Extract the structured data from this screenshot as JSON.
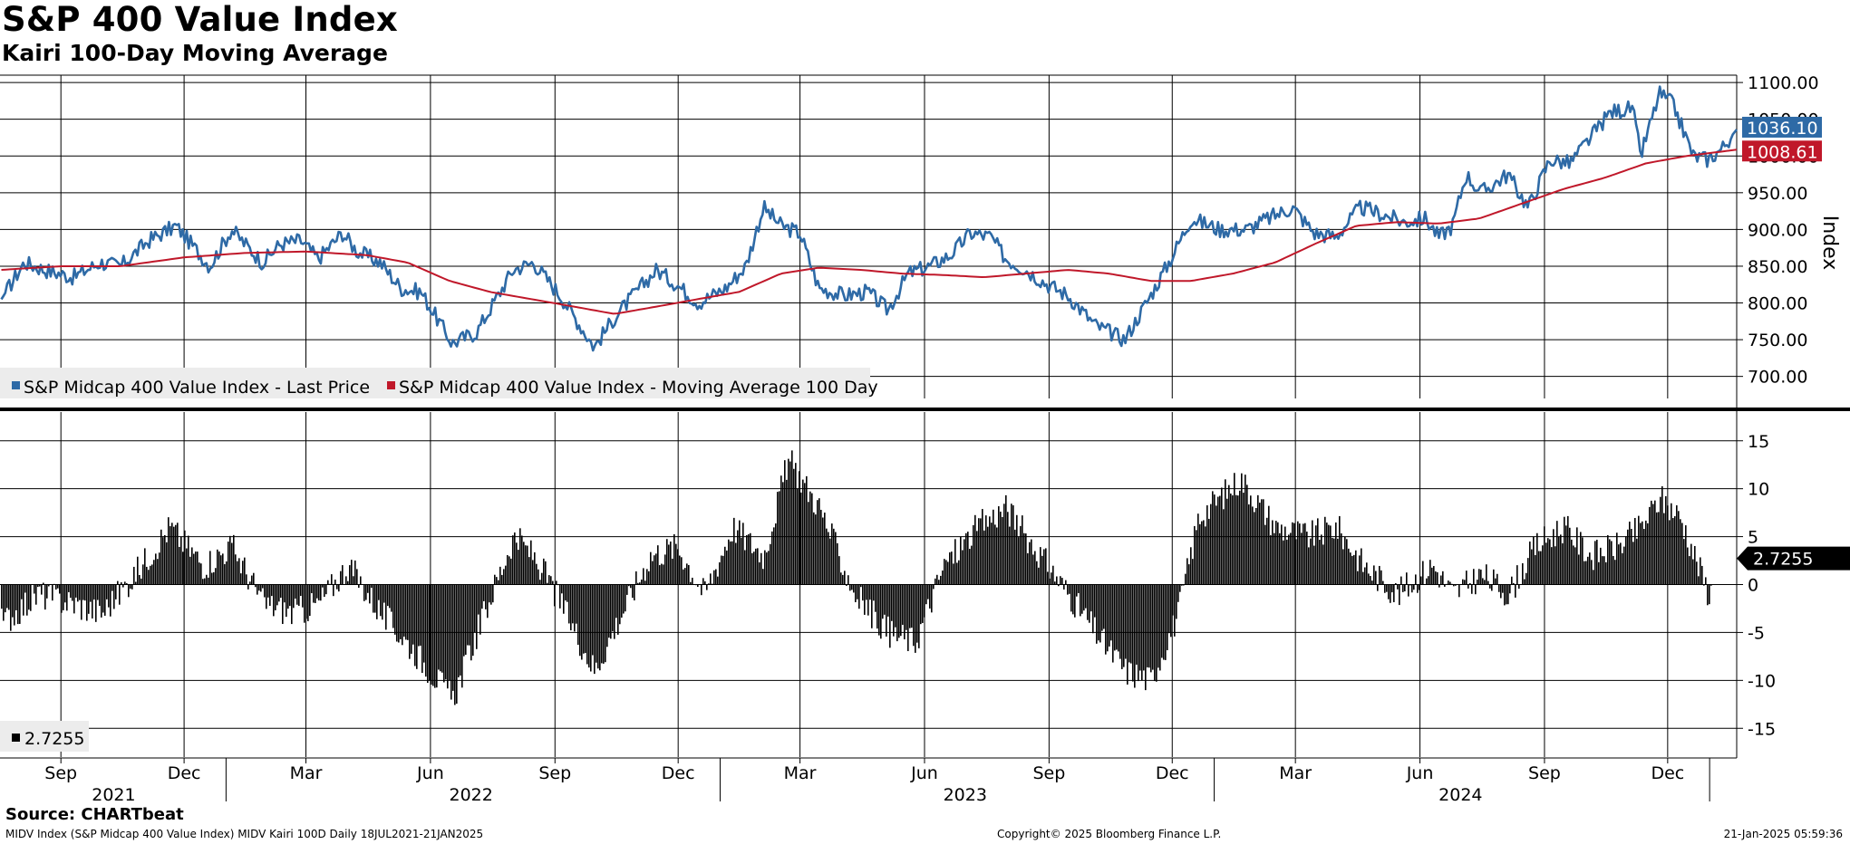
{
  "header": {
    "title": "S&P 400 Value Index",
    "subtitle": "Kairi 100-Day Moving Average"
  },
  "footer": {
    "source": "Source: CHARTbeat",
    "left": "MIDV Index (S&P Midcap 400 Value Index) MIDV Kairi 100D  Daily 18JUL2021-21JAN2025",
    "middle": "Copyright© 2025 Bloomberg Finance L.P.",
    "right": "21-Jan-2025 05:59:36"
  },
  "colors": {
    "price": "#2e6aa6",
    "ma": "#c0182a",
    "kairi": "#000000",
    "grid": "#000000"
  },
  "chart_data": [
    {
      "type": "line",
      "title": "S&P 400 Value Index",
      "ylabel": "Index",
      "ylim": [
        670,
        1110
      ],
      "yticks": [
        700,
        750,
        800,
        850,
        900,
        950,
        1000,
        1050,
        1100
      ],
      "ytick_labels": [
        "700.00",
        "750.00",
        "800.00",
        "850.00",
        "900.00",
        "950.00",
        "1000.00",
        "1050.00",
        "1100.00"
      ],
      "x_start": "2021-07-18",
      "x_end": "2025-01-21",
      "legend": [
        "S&P Midcap 400 Value Index - Last Price",
        "S&P Midcap 400 Value Index - Moving Average 100 Day"
      ],
      "last_labels": [
        {
          "series": "price",
          "text": "1036.10",
          "value": 1036.1
        },
        {
          "series": "ma",
          "text": "1008.61",
          "value": 1008.61
        }
      ],
      "series": [
        {
          "name": "S&P Midcap 400 Value Index - Last Price",
          "key": "price",
          "x": [
            "2021-07-19",
            "2021-08-05",
            "2021-08-20",
            "2021-09-10",
            "2021-09-30",
            "2021-10-15",
            "2021-11-05",
            "2021-11-25",
            "2021-12-20",
            "2022-01-05",
            "2022-01-28",
            "2022-02-10",
            "2022-02-25",
            "2022-03-10",
            "2022-03-28",
            "2022-04-08",
            "2022-04-25",
            "2022-05-10",
            "2022-05-25",
            "2022-06-17",
            "2022-07-05",
            "2022-08-01",
            "2022-08-16",
            "2022-09-05",
            "2022-09-30",
            "2022-10-15",
            "2022-10-31",
            "2022-11-15",
            "2022-11-30",
            "2022-12-16",
            "2023-01-05",
            "2023-01-20",
            "2023-02-02",
            "2023-02-15",
            "2023-03-01",
            "2023-03-15",
            "2023-04-03",
            "2023-04-20",
            "2023-05-05",
            "2023-05-20",
            "2023-06-05",
            "2023-06-20",
            "2023-07-05",
            "2023-07-20",
            "2023-07-31",
            "2023-08-15",
            "2023-08-31",
            "2023-09-15",
            "2023-10-05",
            "2023-10-27",
            "2023-11-15",
            "2023-11-30",
            "2023-12-15",
            "2024-01-05",
            "2024-01-25",
            "2024-02-10",
            "2024-02-28",
            "2024-03-15",
            "2024-03-31",
            "2024-04-18",
            "2024-05-05",
            "2024-05-20",
            "2024-06-05",
            "2024-06-15",
            "2024-06-25",
            "2024-07-05",
            "2024-07-16",
            "2024-08-05",
            "2024-08-20",
            "2024-09-05",
            "2024-09-20",
            "2024-10-05",
            "2024-10-20",
            "2024-11-05",
            "2024-11-11",
            "2024-11-25",
            "2024-12-05",
            "2024-12-20",
            "2024-12-31",
            "2025-01-10",
            "2025-01-21"
          ],
          "values": [
            805,
            855,
            845,
            835,
            855,
            850,
            885,
            905,
            850,
            900,
            855,
            880,
            885,
            860,
            895,
            870,
            855,
            820,
            815,
            745,
            760,
            845,
            855,
            810,
            740,
            780,
            815,
            845,
            825,
            800,
            820,
            850,
            930,
            905,
            895,
            820,
            810,
            815,
            790,
            840,
            850,
            865,
            895,
            890,
            860,
            845,
            825,
            810,
            770,
            750,
            810,
            860,
            915,
            900,
            900,
            915,
            930,
            895,
            890,
            930,
            920,
            910,
            915,
            890,
            905,
            975,
            950,
            975,
            930,
            995,
            990,
            1025,
            1060,
            1065,
            1000,
            1085,
            1070,
            1000,
            995,
            1010,
            1036.1
          ]
        },
        {
          "name": "S&P Midcap 400 Value Index - Moving Average 100 Day",
          "key": "ma",
          "x": [
            "2021-07-19",
            "2021-09-01",
            "2021-10-15",
            "2021-12-01",
            "2022-01-15",
            "2022-03-01",
            "2022-04-15",
            "2022-05-15",
            "2022-06-15",
            "2022-07-15",
            "2022-08-15",
            "2022-09-15",
            "2022-10-15",
            "2022-11-15",
            "2022-12-15",
            "2023-01-15",
            "2023-02-15",
            "2023-03-15",
            "2023-04-15",
            "2023-05-15",
            "2023-06-15",
            "2023-07-15",
            "2023-08-15",
            "2023-09-15",
            "2023-10-15",
            "2023-11-15",
            "2023-12-15",
            "2024-01-15",
            "2024-02-15",
            "2024-03-15",
            "2024-04-15",
            "2024-05-15",
            "2024-06-15",
            "2024-07-15",
            "2024-08-15",
            "2024-09-15",
            "2024-10-15",
            "2024-11-15",
            "2024-12-15",
            "2025-01-21"
          ],
          "values": [
            845,
            850,
            850,
            862,
            868,
            870,
            865,
            855,
            830,
            815,
            805,
            795,
            785,
            795,
            805,
            815,
            840,
            848,
            845,
            840,
            838,
            835,
            840,
            845,
            840,
            830,
            830,
            840,
            855,
            880,
            905,
            910,
            908,
            915,
            935,
            955,
            970,
            990,
            1000,
            1008.61
          ]
        }
      ]
    },
    {
      "type": "bar",
      "title": "MIDV Kairi 100D",
      "ylim": [
        -18,
        18
      ],
      "yticks": [
        -15,
        -10,
        -5,
        0,
        5,
        10,
        15
      ],
      "ytick_labels": [
        "-15",
        "-10",
        "-5",
        "0",
        "5",
        "10",
        "15"
      ],
      "legend": [
        "2.7255"
      ],
      "last_label": {
        "text": "2.7255",
        "value": 2.7255
      },
      "x_anchor": [
        "2021-07-19",
        "2021-08-15",
        "2021-09-10",
        "2021-10-01",
        "2021-10-25",
        "2021-11-20",
        "2021-12-15",
        "2022-01-05",
        "2022-01-28",
        "2022-02-20",
        "2022-03-10",
        "2022-04-01",
        "2022-04-25",
        "2022-05-20",
        "2022-06-17",
        "2022-07-05",
        "2022-08-01",
        "2022-08-16",
        "2022-09-05",
        "2022-09-30",
        "2022-10-20",
        "2022-11-10",
        "2022-11-30",
        "2022-12-20",
        "2023-01-10",
        "2023-02-02",
        "2023-02-20",
        "2023-03-15",
        "2023-04-10",
        "2023-05-05",
        "2023-05-25",
        "2023-06-15",
        "2023-07-10",
        "2023-07-31",
        "2023-08-20",
        "2023-09-15",
        "2023-10-10",
        "2023-10-27",
        "2023-11-15",
        "2023-12-05",
        "2023-12-20",
        "2024-01-20",
        "2024-02-15",
        "2024-03-10",
        "2024-03-31",
        "2024-04-20",
        "2024-05-15",
        "2024-06-10",
        "2024-06-25",
        "2024-07-16",
        "2024-08-05",
        "2024-08-25",
        "2024-09-15",
        "2024-10-05",
        "2024-10-25",
        "2024-11-11",
        "2024-11-25",
        "2024-12-10",
        "2024-12-31",
        "2025-01-10",
        "2025-01-21"
      ],
      "y_anchor": [
        -4,
        -1,
        -2,
        -3,
        1,
        6,
        2,
        4,
        -2,
        -3,
        -2,
        2,
        -3,
        -7,
        -12,
        -5,
        5,
        3,
        -2,
        -9,
        -3,
        3,
        4,
        -1,
        6,
        3,
        13,
        8,
        -1,
        -5,
        -6,
        2,
        6,
        8,
        4,
        -1,
        -6,
        -9,
        -10,
        -3,
        7,
        11,
        6,
        5,
        6,
        2,
        -1,
        2,
        -1,
        1,
        -1,
        4,
        6,
        3,
        4,
        6,
        9,
        7,
        -1,
        0,
        2.7255
      ]
    }
  ],
  "axis": {
    "month_labels": [
      {
        "date": "2021-09-01",
        "text": "Sep"
      },
      {
        "date": "2021-12-01",
        "text": "Dec"
      },
      {
        "date": "2022-03-01",
        "text": "Mar"
      },
      {
        "date": "2022-06-01",
        "text": "Jun"
      },
      {
        "date": "2022-09-01",
        "text": "Sep"
      },
      {
        "date": "2022-12-01",
        "text": "Dec"
      },
      {
        "date": "2023-03-01",
        "text": "Mar"
      },
      {
        "date": "2023-06-01",
        "text": "Jun"
      },
      {
        "date": "2023-09-01",
        "text": "Sep"
      },
      {
        "date": "2023-12-01",
        "text": "Dec"
      },
      {
        "date": "2024-03-01",
        "text": "Mar"
      },
      {
        "date": "2024-06-01",
        "text": "Jun"
      },
      {
        "date": "2024-09-01",
        "text": "Sep"
      },
      {
        "date": "2024-12-01",
        "text": "Dec"
      }
    ],
    "year_labels": [
      {
        "date": "2021-10-10",
        "text": "2021"
      },
      {
        "date": "2022-07-01",
        "text": "2022"
      },
      {
        "date": "2023-07-01",
        "text": "2023"
      },
      {
        "date": "2024-07-01",
        "text": "2024"
      }
    ],
    "year_dividers": [
      "2022-01-01",
      "2023-01-01",
      "2024-01-01",
      "2025-01-01"
    ]
  }
}
